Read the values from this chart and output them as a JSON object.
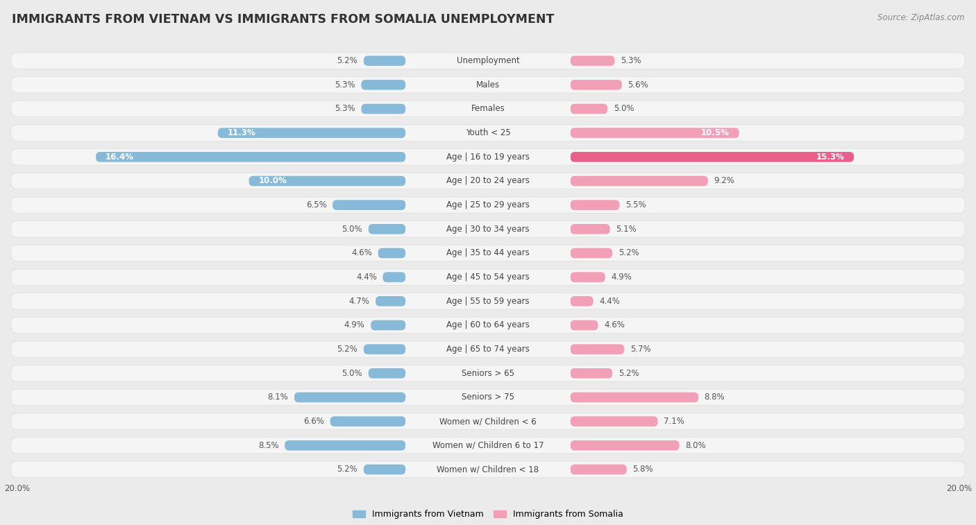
{
  "title": "IMMIGRANTS FROM VIETNAM VS IMMIGRANTS FROM SOMALIA UNEMPLOYMENT",
  "source": "Source: ZipAtlas.com",
  "categories": [
    "Unemployment",
    "Males",
    "Females",
    "Youth < 25",
    "Age | 16 to 19 years",
    "Age | 20 to 24 years",
    "Age | 25 to 29 years",
    "Age | 30 to 34 years",
    "Age | 35 to 44 years",
    "Age | 45 to 54 years",
    "Age | 55 to 59 years",
    "Age | 60 to 64 years",
    "Age | 65 to 74 years",
    "Seniors > 65",
    "Seniors > 75",
    "Women w/ Children < 6",
    "Women w/ Children 6 to 17",
    "Women w/ Children < 18"
  ],
  "vietnam_values": [
    5.2,
    5.3,
    5.3,
    11.3,
    16.4,
    10.0,
    6.5,
    5.0,
    4.6,
    4.4,
    4.7,
    4.9,
    5.2,
    5.0,
    8.1,
    6.6,
    8.5,
    5.2
  ],
  "somalia_values": [
    5.3,
    5.6,
    5.0,
    10.5,
    15.3,
    9.2,
    5.5,
    5.1,
    5.2,
    4.9,
    4.4,
    4.6,
    5.7,
    5.2,
    8.8,
    7.1,
    8.0,
    5.8
  ],
  "vietnam_color": "#87b9d9",
  "somalia_color": "#f2a0b8",
  "somalia_strong_color": "#e8608a",
  "xlim": 20.0,
  "background_color": "#ebebeb",
  "row_bg_color": "#f5f5f5",
  "row_bg_edge_color": "#e0e0e0",
  "label_vietnam": "Immigrants from Vietnam",
  "label_somalia": "Immigrants from Somalia",
  "title_fontsize": 12.5,
  "source_fontsize": 8.5,
  "value_fontsize": 8.5,
  "category_fontsize": 8.5,
  "inside_threshold": 9.5,
  "strong_threshold": 14.0
}
